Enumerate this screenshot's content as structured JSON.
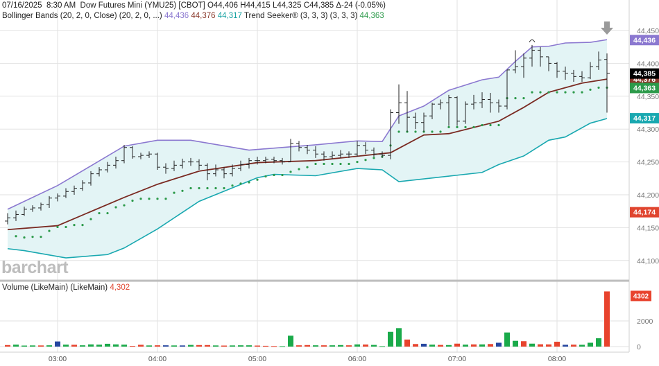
{
  "header": {
    "date": "07/16/2025",
    "time": "8:30 AM",
    "symbol_name": "Dow Futures Mini (YMU25) [CBOT]",
    "ohlc": "O44,406 H44,415 L44,325 C44,385 Δ-24 (-0.05%)"
  },
  "indicators": {
    "bollinger_label": "Bollinger Bands (20, 2, 0, Close)  (20, 2, 0, ...)",
    "bb_upper": "44,436",
    "bb_mid": "44,376",
    "bb_lower": "44,317",
    "trend_label": "Trend Seeker® (3, 3, 3)  (3, 3, 3)",
    "trend_value": "44,363"
  },
  "volume_panel": {
    "label": "Volume (LikeMain)  (LikeMain)",
    "value": "4,302",
    "last_badge": "4302"
  },
  "logo": "barchart",
  "colors": {
    "upper": "#8b78d0",
    "mid": "#7a2a22",
    "lower": "#19a8b0",
    "band_fill": "#e3f4f5",
    "trend": "#2c9a4a",
    "bar": "#222222",
    "vol_up": "#1aaa4a",
    "vol_down": "#e8432d",
    "vol_flat": "#2546a0"
  },
  "chart_data": {
    "type": "ohlc",
    "price_axis": {
      "ticks": [
        "44,100",
        "44,150",
        "44,200",
        "44,250",
        "44,300",
        "44,350",
        "44,400",
        "44,450"
      ],
      "tick_values": [
        44100,
        44150,
        44200,
        44250,
        44300,
        44350,
        44400,
        44450
      ]
    },
    "time_axis": {
      "ticks": [
        "03:00",
        "04:00",
        "05:00",
        "06:00",
        "07:00",
        "08:00"
      ]
    },
    "first_bar_time": "02:30",
    "bar_interval_minutes": 5,
    "bars": [
      [
        44160,
        44172,
        44155,
        44165
      ],
      [
        44165,
        44176,
        44160,
        44170
      ],
      [
        44170,
        44182,
        44168,
        44178
      ],
      [
        44178,
        44184,
        44174,
        44180
      ],
      [
        44180,
        44188,
        44176,
        44185
      ],
      [
        44185,
        44198,
        44180,
        44195
      ],
      [
        44195,
        44202,
        44190,
        44198
      ],
      [
        44198,
        44210,
        44195,
        44205
      ],
      [
        44205,
        44214,
        44200,
        44210
      ],
      [
        44210,
        44222,
        44206,
        44218
      ],
      [
        44218,
        44236,
        44214,
        44232
      ],
      [
        44232,
        44242,
        44228,
        44238
      ],
      [
        44238,
        44250,
        44234,
        44245
      ],
      [
        44245,
        44258,
        44240,
        44252
      ],
      [
        44252,
        44276,
        44248,
        44272
      ],
      [
        44272,
        44274,
        44255,
        44258
      ],
      [
        44258,
        44264,
        44254,
        44260
      ],
      [
        44260,
        44266,
        44256,
        44262
      ],
      [
        44262,
        44264,
        44238,
        44242
      ],
      [
        44242,
        44248,
        44232,
        44240
      ],
      [
        44240,
        44252,
        44236,
        44245
      ],
      [
        44245,
        44255,
        44240,
        44250
      ],
      [
        44250,
        44256,
        44244,
        44250
      ],
      [
        44250,
        44254,
        44238,
        44245
      ],
      [
        44245,
        44248,
        44222,
        44232
      ],
      [
        44232,
        44246,
        44228,
        44238
      ],
      [
        44238,
        44242,
        44225,
        44232
      ],
      [
        44232,
        44246,
        44228,
        44240
      ],
      [
        44240,
        44252,
        44236,
        44246
      ],
      [
        44246,
        44256,
        44240,
        44252
      ],
      [
        44252,
        44258,
        44246,
        44252
      ],
      [
        44252,
        44258,
        44248,
        44254
      ],
      [
        44254,
        44258,
        44248,
        44252
      ],
      [
        44252,
        44256,
        44246,
        44250
      ],
      [
        44250,
        44285,
        44250,
        44278
      ],
      [
        44278,
        44282,
        44266,
        44272
      ],
      [
        44272,
        44276,
        44262,
        44268
      ],
      [
        44268,
        44274,
        44256,
        44262
      ],
      [
        44262,
        44266,
        44252,
        44258
      ],
      [
        44258,
        44266,
        44254,
        44260
      ],
      [
        44260,
        44268,
        44256,
        44262
      ],
      [
        44262,
        44266,
        44256,
        44262
      ],
      [
        44262,
        44282,
        44258,
        44275
      ],
      [
        44275,
        44280,
        44262,
        44268
      ],
      [
        44268,
        44272,
        44258,
        44262
      ],
      [
        44262,
        44266,
        44256,
        44260
      ],
      [
        44260,
        44330,
        44254,
        44325
      ],
      [
        44325,
        44368,
        44308,
        44340
      ],
      [
        44340,
        44358,
        44296,
        44318
      ],
      [
        44318,
        44325,
        44300,
        44310
      ],
      [
        44310,
        44325,
        44296,
        44320
      ],
      [
        44320,
        44340,
        44315,
        44338
      ],
      [
        44338,
        44345,
        44330,
        44340
      ],
      [
        44340,
        44352,
        44305,
        44348
      ],
      [
        44348,
        44350,
        44305,
        44312
      ],
      [
        44312,
        44342,
        44308,
        44338
      ],
      [
        44338,
        44352,
        44330,
        44340
      ],
      [
        44340,
        44356,
        44332,
        44345
      ],
      [
        44345,
        44355,
        44325,
        44340
      ],
      [
        44340,
        44345,
        44325,
        44335
      ],
      [
        44335,
        44390,
        44330,
        44390
      ],
      [
        44390,
        44420,
        44385,
        44395
      ],
      [
        44395,
        44415,
        44378,
        44408
      ],
      [
        44408,
        44428,
        44395,
        44420
      ],
      [
        44420,
        44425,
        44395,
        44410
      ],
      [
        44410,
        44410,
        44388,
        44400
      ],
      [
        44400,
        44402,
        44378,
        44388
      ],
      [
        44388,
        44395,
        44375,
        44385
      ],
      [
        44385,
        44390,
        44372,
        44380
      ],
      [
        44380,
        44388,
        44372,
        44378
      ],
      [
        44378,
        44402,
        44376,
        44395
      ],
      [
        44395,
        44418,
        44390,
        44405
      ],
      [
        44406,
        44415,
        44325,
        44385
      ]
    ],
    "bollinger_upper": [
      [
        "02:30",
        44178
      ],
      [
        "03:00",
        44214
      ],
      [
        "03:40",
        44274
      ],
      [
        "04:00",
        44283
      ],
      [
        "04:20",
        44283
      ],
      [
        "04:55",
        44268
      ],
      [
        "05:35",
        44276
      ],
      [
        "06:00",
        44282
      ],
      [
        "06:15",
        44281
      ],
      [
        "06:25",
        44320
      ],
      [
        "06:40",
        44335
      ],
      [
        "06:55",
        44359
      ],
      [
        "07:15",
        44375
      ],
      [
        "07:25",
        44379
      ],
      [
        "07:35",
        44403
      ],
      [
        "07:45",
        44425
      ],
      [
        "07:55",
        44426
      ],
      [
        "08:05",
        44431
      ],
      [
        "08:20",
        44432
      ],
      [
        "08:30",
        44436
      ]
    ],
    "bollinger_mid": [
      [
        "02:30",
        44147
      ],
      [
        "03:00",
        44153
      ],
      [
        "03:40",
        44196
      ],
      [
        "04:00",
        44216
      ],
      [
        "04:25",
        44236
      ],
      [
        "05:00",
        44249
      ],
      [
        "05:35",
        44252
      ],
      [
        "06:20",
        44264
      ],
      [
        "06:40",
        44291
      ],
      [
        "06:55",
        44293
      ],
      [
        "07:25",
        44312
      ],
      [
        "07:40",
        44333
      ],
      [
        "07:55",
        44356
      ],
      [
        "08:15",
        44370
      ],
      [
        "08:30",
        44376
      ]
    ],
    "bollinger_lower": [
      [
        "02:30",
        44118
      ],
      [
        "02:40",
        44115
      ],
      [
        "03:05",
        44104
      ],
      [
        "03:30",
        44109
      ],
      [
        "03:40",
        44119
      ],
      [
        "04:00",
        44148
      ],
      [
        "04:25",
        44190
      ],
      [
        "05:00",
        44226
      ],
      [
        "05:10",
        44231
      ],
      [
        "05:35",
        44229
      ],
      [
        "06:00",
        44240
      ],
      [
        "06:15",
        44238
      ],
      [
        "06:25",
        44220
      ],
      [
        "06:50",
        44227
      ],
      [
        "07:15",
        44234
      ],
      [
        "07:25",
        44246
      ],
      [
        "07:40",
        44259
      ],
      [
        "07:55",
        44283
      ],
      [
        "08:05",
        44288
      ],
      [
        "08:20",
        44309
      ],
      [
        "08:30",
        44316
      ]
    ],
    "trend_seeker": [
      null,
      44137,
      44135,
      44136,
      44136,
      44145,
      44151,
      44151,
      44154,
      44154,
      44163,
      44172,
      44172,
      44181,
      44184,
      44191,
      44194,
      44194,
      44194,
      44194,
      44203,
      44206,
      44210,
      44210,
      44210,
      44210,
      44210,
      44214,
      44217,
      44219,
      44223,
      44228,
      44230,
      44230,
      44235,
      44239,
      44242,
      44247,
      44247,
      44247,
      44247,
      44247,
      44250,
      44253,
      44256,
      44258,
      44275,
      44296,
      44296,
      44296,
      44296,
      44296,
      44296,
      44303,
      44303,
      44303,
      44303,
      44306,
      44306,
      44306,
      44347,
      44347,
      44347,
      44356,
      44356,
      44356,
      44356,
      44356,
      44356,
      44356,
      44360,
      44363,
      44363
    ],
    "volume": {
      "ticks": [
        "0",
        "2000"
      ],
      "tick_values": [
        0,
        2000
      ],
      "values": [
        120,
        150,
        80,
        90,
        90,
        100,
        400,
        150,
        140,
        100,
        170,
        150,
        220,
        170,
        150,
        50,
        140,
        90,
        100,
        100,
        90,
        90,
        130,
        120,
        120,
        90,
        80,
        90,
        100,
        100,
        80,
        60,
        40,
        30,
        850,
        100,
        120,
        100,
        100,
        100,
        120,
        100,
        170,
        160,
        130,
        30,
        1150,
        1440,
        550,
        200,
        220,
        150,
        130,
        120,
        230,
        150,
        170,
        170,
        200,
        300,
        1100,
        450,
        420,
        230,
        180,
        170,
        380,
        140,
        150,
        140,
        300,
        650,
        4302
      ],
      "dir": [
        "d",
        "u",
        "u",
        "u",
        "d",
        "u",
        "f",
        "u",
        "d",
        "u",
        "u",
        "u",
        "u",
        "u",
        "u",
        "d",
        "d",
        "u",
        "d",
        "f",
        "u",
        "f",
        "u",
        "d",
        "d",
        "u",
        "d",
        "u",
        "u",
        "u",
        "d",
        "d",
        "d",
        "u",
        "u",
        "d",
        "d",
        "u",
        "d",
        "u",
        "u",
        "d",
        "u",
        "d",
        "u",
        "u",
        "u",
        "u",
        "d",
        "d",
        "f",
        "u",
        "d",
        "u",
        "d",
        "u",
        "d",
        "u",
        "d",
        "f",
        "u",
        "u",
        "d",
        "u",
        "d",
        "d",
        "d",
        "f",
        "d",
        "u",
        "u",
        "u",
        "d"
      ]
    },
    "price_badges": [
      {
        "label": "44,436",
        "value": 44436,
        "color": "#8b78d0"
      },
      {
        "label": "44,376",
        "value": 44376,
        "color": "#8a3a2c"
      },
      {
        "label": "44,385",
        "value": 44385,
        "color": "#000000"
      },
      {
        "label": "44,363",
        "value": 44363,
        "color": "#2c9a4a"
      },
      {
        "label": "44,317",
        "value": 44317,
        "color": "#19a8b0"
      },
      {
        "label": "44,174",
        "value": 44174,
        "color": "#e0452f"
      }
    ],
    "annotations": {
      "current_bar_arrow": "down-arrow",
      "high_marker": "07:45"
    }
  }
}
